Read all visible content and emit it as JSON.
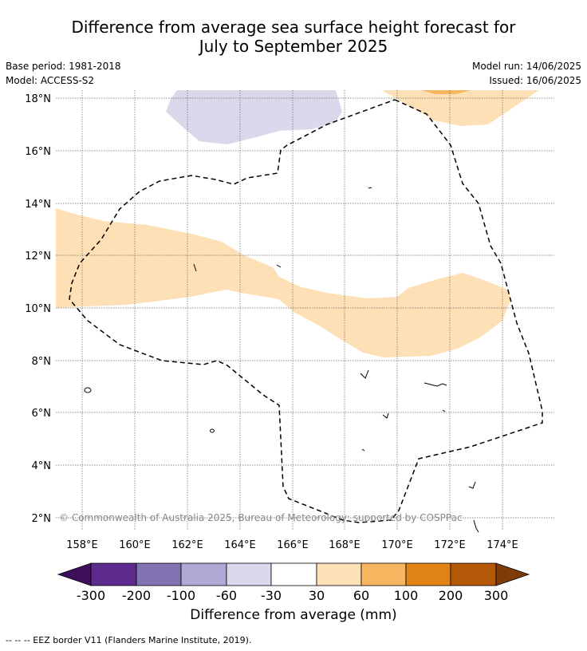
{
  "title": {
    "line1": "Difference from average sea surface height forecast for",
    "line2": "July to September 2025"
  },
  "meta": {
    "base_period": "Base period: 1981-2018",
    "model": "Model: ACCESS-S2",
    "model_run": "Model run: 14/06/2025",
    "issued": "Issued: 16/06/2025"
  },
  "copyright": "© Commonwealth of Australia 2025, Bureau of Meteorology; supported by COSPPac",
  "map": {
    "lon_ticks": [
      "158°E",
      "160°E",
      "162°E",
      "164°E",
      "166°E",
      "168°E",
      "170°E",
      "172°E",
      "174°E"
    ],
    "lat_ticks": [
      "2°N",
      "4°N",
      "6°N",
      "8°N",
      "10°N",
      "12°N",
      "14°N",
      "16°N",
      "18°N"
    ],
    "grid": true
  },
  "colorbar": {
    "label": "Difference from average (mm)",
    "tick_labels": [
      "-300",
      "-200",
      "-100",
      "-60",
      "-30",
      "30",
      "60",
      "100",
      "200",
      "300"
    ],
    "colors": [
      "#3f0f5e",
      "#5b2a8c",
      "#8172b1",
      "#b1a9d3",
      "#d9d9eb",
      "#ffffff",
      "#fde0b6",
      "#f9b660",
      "#e08214",
      "#b35806",
      "#7f3b08"
    ]
  },
  "legend_footer": "--  --  -- EEZ border V11 (Flanders Marine Institute, 2019)."
}
